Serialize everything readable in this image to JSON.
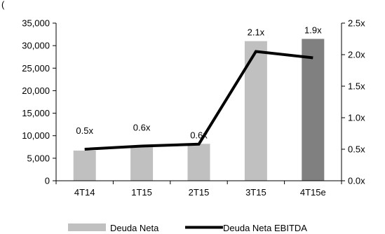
{
  "chart_data": {
    "type": "bar",
    "title": "",
    "header_fragment": "(",
    "categories": [
      "4T14",
      "1T15",
      "2T15",
      "3T15",
      "4T15e"
    ],
    "series": [
      {
        "name": "Deuda Neta",
        "kind": "bar",
        "axis": "left",
        "values": [
          6700,
          7700,
          8200,
          31000,
          31500
        ],
        "colors": [
          "#c0c0c0",
          "#c0c0c0",
          "#c0c0c0",
          "#c0c0c0",
          "#808080"
        ]
      },
      {
        "name": "Deuda Neta EBITDA",
        "kind": "line",
        "axis": "right",
        "values": [
          0.5,
          0.55,
          0.58,
          2.05,
          1.95
        ],
        "labels": [
          "0.5x",
          "0.6x",
          "0.6x",
          "2.1x",
          "1.9x"
        ],
        "color": "#000000"
      }
    ],
    "y_left": {
      "min": 0,
      "max": 35000,
      "ticks": [
        "0",
        "5,000",
        "10,000",
        "15,000",
        "20,000",
        "25,000",
        "30,000",
        "35,000"
      ]
    },
    "y_right": {
      "min": 0,
      "max": 2.5,
      "ticks": [
        "0.0x",
        "0.5x",
        "1.0x",
        "1.5x",
        "2.0x",
        "2.5x"
      ]
    },
    "grid": false,
    "legend_position": "bottom"
  }
}
